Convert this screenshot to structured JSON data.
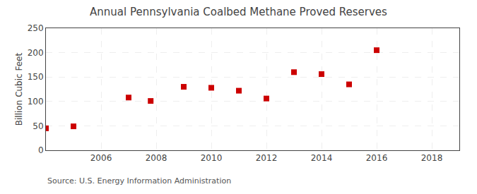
{
  "chart_data": {
    "type": "scatter",
    "title": "Annual Pennsylvania Coalbed Methane Proved Reserves",
    "ylabel": "Billion Cubic Feet",
    "annotations": [
      "Source: U.S. Energy Information Administration"
    ],
    "x": [
      2004,
      2005,
      2007,
      2007.8,
      2009,
      2010,
      2011,
      2012,
      2013,
      2014,
      2015,
      2016
    ],
    "values": [
      45,
      49,
      108,
      101,
      130,
      128,
      122,
      106,
      160,
      156,
      135,
      205
    ],
    "color": "#cc0000",
    "marker": "square",
    "xlim": [
      2004,
      2019
    ],
    "xticks": [
      2006,
      2008,
      2010,
      2012,
      2014,
      2016,
      2018
    ],
    "ylim": [
      0,
      250
    ],
    "yticks": [
      0,
      50,
      100,
      150,
      200,
      250
    ],
    "grid": true
  }
}
